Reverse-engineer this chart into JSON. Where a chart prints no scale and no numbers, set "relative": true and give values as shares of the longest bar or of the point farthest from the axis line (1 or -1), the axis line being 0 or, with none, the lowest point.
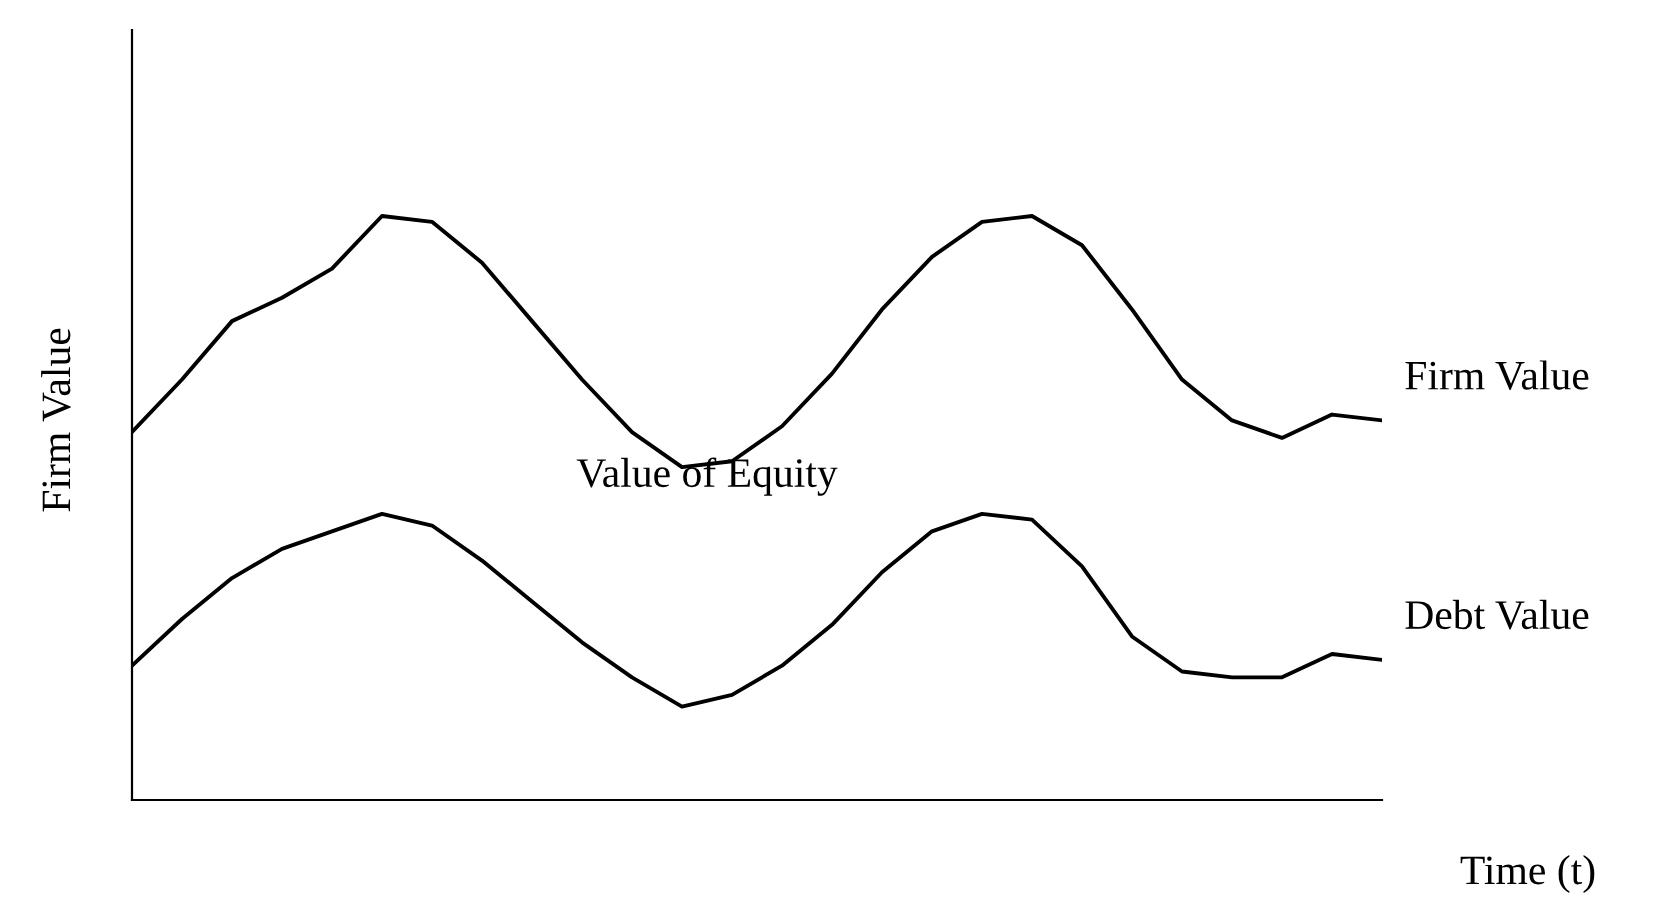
{
  "chart_data": {
    "type": "line",
    "relative": true,
    "xlabel": "Time (t)",
    "ylabel": "Firm Value",
    "annotations": [
      "Value of Equity"
    ],
    "categories": [
      null,
      null,
      null,
      null,
      null,
      null,
      null,
      null,
      null,
      null,
      null,
      null,
      null,
      null,
      null,
      null,
      null,
      null,
      null,
      null,
      null,
      null,
      null,
      null,
      null,
      null
    ],
    "series": [
      {
        "name": "Firm Value",
        "color": "#000000",
        "values": [
          0.63,
          0.72,
          0.82,
          0.86,
          0.91,
          1,
          0.99,
          0.92,
          0.82,
          0.72,
          0.63,
          0.57,
          0.58,
          0.64,
          0.73,
          0.84,
          0.93,
          0.99,
          1,
          0.95,
          0.84,
          0.72,
          0.65,
          0.62,
          0.66,
          0.65
        ]
      },
      {
        "name": "Debt Value",
        "color": "#000000",
        "values": [
          0.23,
          0.31,
          0.38,
          0.43,
          0.46,
          0.49,
          0.47,
          0.41,
          0.34,
          0.27,
          0.21,
          0.16,
          0.18,
          0.23,
          0.3,
          0.39,
          0.46,
          0.49,
          0.48,
          0.4,
          0.28,
          0.22,
          0.21,
          0.21,
          0.25,
          0.24
        ]
      }
    ],
    "line_style": "solid",
    "marker": "none",
    "legend": false,
    "grid": false
  }
}
